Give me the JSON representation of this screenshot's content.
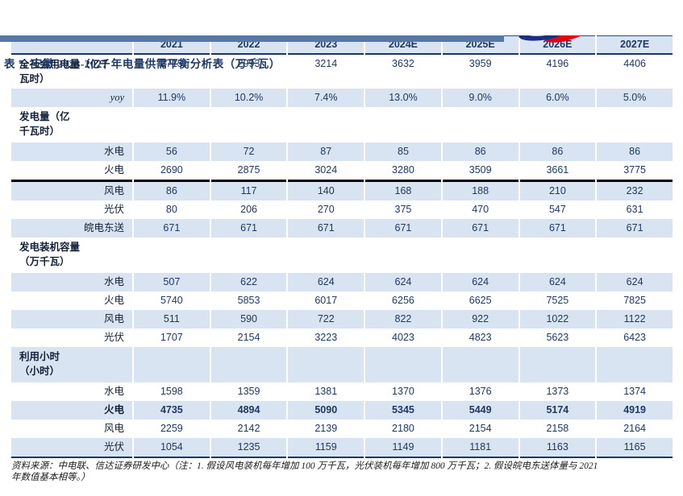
{
  "colors": {
    "accent_navy": "#1F3864",
    "row_shade": "#D9E4F2",
    "topbar_blue": "#5578A8",
    "rule_navy": "#17375E",
    "thick_rule_black": "#000000",
    "logo_navy": "#1E2F83",
    "logo_red": "#E60012"
  },
  "header": {
    "logo_icon": "brand-swoosh-icon"
  },
  "title": "表 7: 安徽 2023-2027 年电量供需平衡分析表（万千瓦）",
  "table": {
    "columns": [
      "2021",
      "2022",
      "2023",
      "2024E",
      "2025E",
      "2026E",
      "2027E"
    ],
    "rows": [
      {
        "label_lines": [
          "全社会用电量（亿千",
          "瓦时）"
        ],
        "style": "metric",
        "tall": true,
        "shaded": false,
        "values": [
          "2715",
          "2993",
          "3214",
          "3632",
          "3959",
          "4196",
          "4406"
        ]
      },
      {
        "label_lines": [
          "yoy"
        ],
        "style": "sub-italic",
        "shaded": true,
        "values": [
          "11.9%",
          "10.2%",
          "7.4%",
          "13.0%",
          "9.0%",
          "6.0%",
          "5.0%"
        ]
      },
      {
        "label_lines": [
          "发电量（亿",
          "千瓦时）"
        ],
        "style": "section",
        "shaded": false,
        "values": null
      },
      {
        "label_lines": [
          "水电"
        ],
        "style": "sub",
        "shaded": true,
        "values": [
          "56",
          "72",
          "87",
          "85",
          "86",
          "86",
          "86"
        ]
      },
      {
        "label_lines": [
          "火电"
        ],
        "style": "sub",
        "shaded": false,
        "thick_bottom": true,
        "values": [
          "2690",
          "2875",
          "3024",
          "3280",
          "3509",
          "3661",
          "3775"
        ]
      },
      {
        "label_lines": [
          "风电"
        ],
        "style": "sub",
        "shaded": true,
        "values": [
          "86",
          "117",
          "140",
          "168",
          "188",
          "210",
          "232"
        ]
      },
      {
        "label_lines": [
          "光伏"
        ],
        "style": "sub",
        "shaded": false,
        "values": [
          "80",
          "206",
          "270",
          "375",
          "470",
          "547",
          "631"
        ]
      },
      {
        "label_lines": [
          "皖电东送"
        ],
        "style": "sub",
        "shaded": true,
        "values": [
          "671",
          "671",
          "671",
          "671",
          "671",
          "671",
          "671"
        ]
      },
      {
        "label_lines": [
          "发电装机容量",
          "（万千瓦）"
        ],
        "style": "section",
        "shaded": false,
        "values": null
      },
      {
        "label_lines": [
          "水电"
        ],
        "style": "sub",
        "shaded": true,
        "values": [
          "507",
          "622",
          "624",
          "624",
          "624",
          "624",
          "624"
        ]
      },
      {
        "label_lines": [
          "火电"
        ],
        "style": "sub",
        "shaded": false,
        "values": [
          "5740",
          "5853",
          "6017",
          "6256",
          "6625",
          "7525",
          "7825"
        ]
      },
      {
        "label_lines": [
          "风电"
        ],
        "style": "sub",
        "shaded": true,
        "values": [
          "511",
          "590",
          "722",
          "822",
          "922",
          "1022",
          "1122"
        ]
      },
      {
        "label_lines": [
          "光伏"
        ],
        "style": "sub",
        "shaded": false,
        "values": [
          "1707",
          "2154",
          "3223",
          "4023",
          "4823",
          "5623",
          "6423"
        ]
      },
      {
        "label_lines": [
          "利用小时",
          "（小时）"
        ],
        "style": "section",
        "shaded": true,
        "values": null
      },
      {
        "label_lines": [
          "水电"
        ],
        "style": "sub",
        "shaded": false,
        "values": [
          "1598",
          "1359",
          "1381",
          "1370",
          "1376",
          "1373",
          "1374"
        ]
      },
      {
        "label_lines": [
          "火电"
        ],
        "style": "sub",
        "bold": true,
        "shaded": true,
        "values": [
          "4735",
          "4894",
          "5090",
          "5345",
          "5449",
          "5174",
          "4919"
        ]
      },
      {
        "label_lines": [
          "风电"
        ],
        "style": "sub",
        "shaded": false,
        "values": [
          "2259",
          "2142",
          "2139",
          "2180",
          "2154",
          "2158",
          "2164"
        ]
      },
      {
        "label_lines": [
          "光伏"
        ],
        "style": "sub",
        "shaded": true,
        "last": true,
        "values": [
          "1054",
          "1235",
          "1159",
          "1149",
          "1181",
          "1163",
          "1165"
        ]
      }
    ]
  },
  "footer": {
    "line1": "资料来源：中电联、信达证券研发中心（注：1. 假设风电装机每年增加 100 万千瓦，光伏装机每年增加 800 万千瓦；2. 假设皖电东送体量与 2021",
    "line2": "年数值基本相等。）"
  }
}
